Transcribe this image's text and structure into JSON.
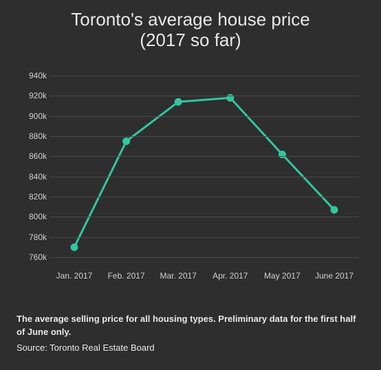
{
  "title_line1": "Toronto's average house price",
  "title_line2": "(2017 so far)",
  "chart": {
    "type": "line",
    "background_color": "#2e2e2e",
    "grid_color": "#4a4a4a",
    "axis_text_color": "#d0d0d0",
    "line_color": "#33c6a0",
    "line_width": 3,
    "marker_style": "circle",
    "marker_size": 5,
    "marker_fill": "#33c6a0",
    "marker_stroke": "#33c6a0",
    "categories": [
      "Jan. 2017",
      "Feb. 2017",
      "Mar. 2017",
      "Apr. 2017",
      "May 2017",
      "June 2017"
    ],
    "values": [
      770000,
      875000,
      914000,
      918000,
      862000,
      807000
    ],
    "y_ticks": [
      760000,
      780000,
      800000,
      820000,
      840000,
      860000,
      880000,
      900000,
      920000,
      940000
    ],
    "y_tick_labels": [
      "760k",
      "780k",
      "800k",
      "820k",
      "840k",
      "860k",
      "880k",
      "900k",
      "920k",
      "940k"
    ],
    "ylim": [
      756000,
      940000
    ],
    "title_fontsize": 26,
    "tick_fontsize": 12
  },
  "footer_note": "The average selling price for all housing types. Preliminary data for the first half of June only.",
  "footer_source": "Source: Toronto Real Estate Board"
}
